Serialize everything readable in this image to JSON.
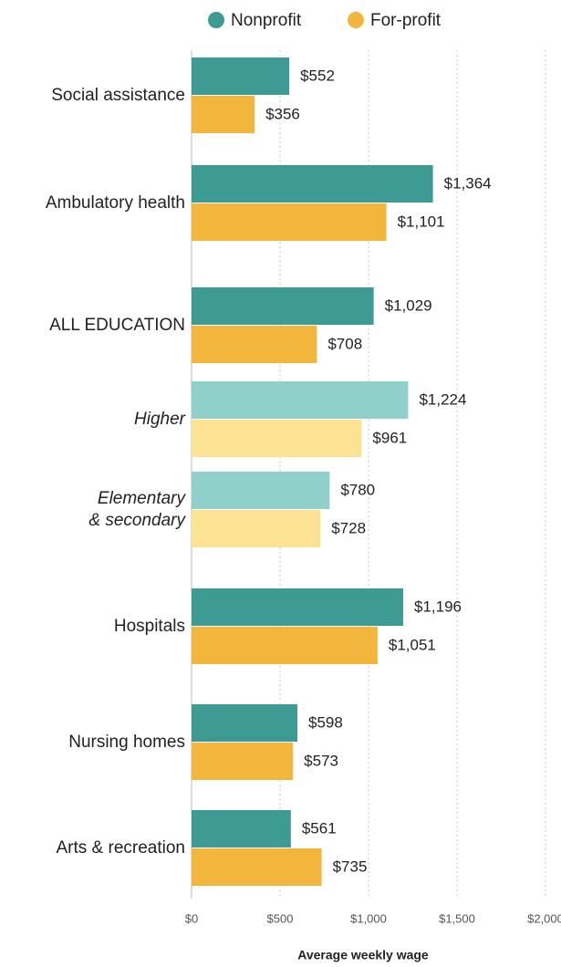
{
  "chart_data": {
    "type": "bar",
    "orientation": "horizontal",
    "categories": [
      "Social assistance",
      "Ambulatory health",
      "ALL EDUCATION",
      "Higher",
      "Elementary\n& secondary",
      "Hospitals",
      "Nursing homes",
      "Arts & recreation"
    ],
    "category_styles": [
      "normal",
      "normal",
      "normal",
      "italic",
      "italic",
      "normal",
      "normal",
      "normal"
    ],
    "series": [
      {
        "name": "Nonprofit",
        "color": "#3d9b94",
        "colors": [
          "#3d9b94",
          "#3d9b94",
          "#3d9b94",
          "#8fd0ca",
          "#8fd0ca",
          "#3d9b94",
          "#3d9b94",
          "#3d9b94"
        ],
        "values": [
          552,
          1364,
          1029,
          1224,
          780,
          1196,
          598,
          561
        ],
        "value_labels": [
          "$552",
          "$1,364",
          "$1,029",
          "$1,224",
          "$780",
          "$1,196",
          "$598",
          "$561"
        ]
      },
      {
        "name": "For-profit",
        "color": "#f2b63c",
        "colors": [
          "#f2b63c",
          "#f2b63c",
          "#f2b63c",
          "#fce293",
          "#fce293",
          "#f2b63c",
          "#f2b63c",
          "#f2b63c"
        ],
        "values": [
          356,
          1101,
          708,
          961,
          728,
          1051,
          573,
          735
        ],
        "value_labels": [
          "$356",
          "$1,101",
          "$708",
          "$961",
          "$728",
          "$1,051",
          "$573",
          "$735"
        ]
      }
    ],
    "xlabel": "Average weekly wage",
    "xlim": [
      0,
      2000
    ],
    "xticks": [
      {
        "value": 0,
        "label": "$0"
      },
      {
        "value": 500,
        "label": "$500"
      },
      {
        "value": 1000,
        "label": "$1,000"
      },
      {
        "value": 1500,
        "label": "$1,500"
      },
      {
        "value": 2000,
        "label": "$2,000"
      }
    ],
    "grid": true,
    "legend": "top"
  }
}
